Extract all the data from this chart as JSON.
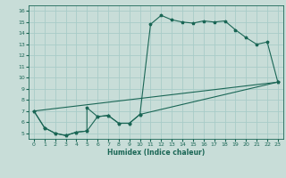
{
  "title": "",
  "xlabel": "Humidex (Indice chaleur)",
  "bg_color": "#c8ddd8",
  "grid_color": "#a8ccc8",
  "line_color": "#1a6655",
  "tick_color": "#1a6655",
  "xlim": [
    -0.5,
    23.5
  ],
  "ylim": [
    4.5,
    16.5
  ],
  "xticks": [
    0,
    1,
    2,
    3,
    4,
    5,
    6,
    7,
    8,
    9,
    10,
    11,
    12,
    13,
    14,
    15,
    16,
    17,
    18,
    19,
    20,
    21,
    22,
    23
  ],
  "yticks": [
    5,
    6,
    7,
    8,
    9,
    10,
    11,
    12,
    13,
    14,
    15,
    16
  ],
  "line1_x": [
    0,
    1,
    2,
    3,
    4,
    5,
    6,
    7,
    8,
    9,
    10,
    11,
    12,
    13,
    14,
    15,
    16,
    17,
    18,
    19,
    20,
    21,
    22,
    23
  ],
  "line1_y": [
    7.0,
    5.5,
    5.0,
    4.8,
    5.1,
    5.2,
    6.5,
    6.6,
    5.9,
    5.9,
    6.7,
    14.8,
    15.6,
    15.2,
    15.0,
    14.9,
    15.1,
    15.0,
    15.1,
    14.3,
    13.6,
    13.0,
    13.2,
    9.6
  ],
  "line2_x": [
    0,
    1,
    2,
    3,
    4,
    5,
    5,
    6,
    7,
    8,
    9,
    10,
    23
  ],
  "line2_y": [
    7.0,
    5.5,
    5.0,
    4.8,
    5.1,
    5.2,
    7.3,
    6.5,
    6.6,
    5.9,
    5.9,
    6.7,
    9.6
  ],
  "line3_x": [
    0,
    23
  ],
  "line3_y": [
    7.0,
    9.6
  ]
}
